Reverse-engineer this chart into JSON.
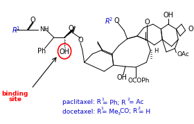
{
  "background_color": "#ffffff",
  "binding_site_text_line1": "binding",
  "binding_site_text_line2": "site",
  "binding_site_color": "#ff0000",
  "annotation_color": "#0000cc",
  "structure_color": "#000000",
  "ellipse_color": "#cc0000",
  "figwidth": 2.8,
  "figheight": 1.79,
  "dpi": 100,
  "paclitaxel_text": "paclitaxel: R",
  "paclitaxel_text2": " = Ph; R",
  "paclitaxel_text3": " = Ac",
  "docetaxel_text": "docetaxel: R",
  "docetaxel_text2": " = Me",
  "docetaxel_text3": "CO; R",
  "docetaxel_text4": " = H"
}
